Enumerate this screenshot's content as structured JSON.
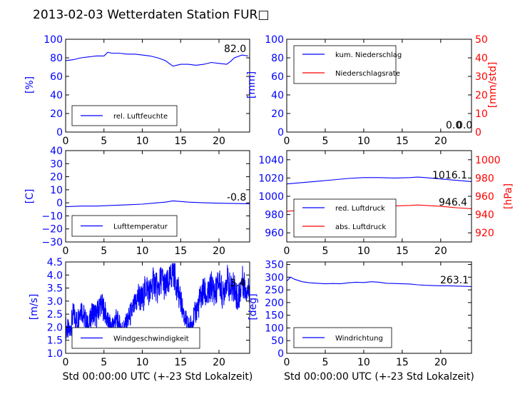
{
  "page": {
    "title": "2013-02-03 Wetterdaten Station FUR□"
  },
  "colors": {
    "left_axis": "#0000ff",
    "right_axis": "#ff0000",
    "frame": "#000000"
  },
  "chart_data": [
    {
      "id": "humidity",
      "type": "line",
      "ylabel": "[%]",
      "ylim": [
        0,
        100
      ],
      "yticks": [
        "0",
        "20",
        "40",
        "60",
        "80",
        "100"
      ],
      "xlim": [
        0,
        24
      ],
      "xticks": [
        "0",
        "5",
        "10",
        "15",
        "20"
      ],
      "xlabel": "",
      "legend": {
        "placement": "lower-left",
        "entries": [
          "rel. Luftfeuchte"
        ]
      },
      "annotation": "82.0",
      "series": [
        {
          "name": "rel. Luftfeuchte",
          "color": "#0000ff",
          "axis": "left",
          "x": [
            0,
            1,
            2,
            3,
            4,
            5,
            5.5,
            6,
            7,
            8,
            9,
            10,
            11,
            12,
            13,
            13.5,
            14,
            15,
            16,
            17,
            18,
            19,
            20,
            21,
            21.5,
            22,
            23,
            23.8
          ],
          "y": [
            77,
            78,
            80,
            81,
            82,
            82,
            86,
            85,
            85,
            84,
            84,
            83,
            82,
            80,
            77,
            74,
            71,
            73,
            73,
            72,
            73,
            75,
            74,
            73,
            76,
            80,
            83,
            82
          ]
        }
      ]
    },
    {
      "id": "precipitation",
      "type": "line",
      "ylabel": "[mm]",
      "ylim": [
        0,
        100
      ],
      "yticks": [
        "0",
        "20",
        "40",
        "60",
        "80",
        "100"
      ],
      "y2label": "[mm/std]",
      "y2lim": [
        0,
        50
      ],
      "y2ticks": [
        "0",
        "10",
        "20",
        "30",
        "40",
        "50"
      ],
      "xlim": [
        0,
        24
      ],
      "xticks": [
        "0",
        "5",
        "10",
        "15",
        "20"
      ],
      "xlabel": "",
      "legend": {
        "placement": "upper-left",
        "entries": [
          "kum. Niederschlag",
          "Niederschlagsrate"
        ]
      },
      "annotation": "0.0",
      "annotation2": "0.0",
      "series": [
        {
          "name": "kum. Niederschlag",
          "color": "#0000ff",
          "axis": "left",
          "x": [
            0,
            24
          ],
          "y": [
            0,
            0
          ]
        },
        {
          "name": "Niederschlagsrate",
          "color": "#ff0000",
          "axis": "right",
          "x": [
            0,
            24
          ],
          "y": [
            0,
            0
          ]
        }
      ]
    },
    {
      "id": "temperature",
      "type": "line",
      "ylabel": "[C]",
      "ylim": [
        -30,
        40
      ],
      "yticks": [
        "−30",
        "−20",
        "−10",
        "0",
        "10",
        "20",
        "30",
        "40"
      ],
      "xlim": [
        0,
        24
      ],
      "xticks": [
        "0",
        "5",
        "10",
        "15",
        "20"
      ],
      "xlabel": "",
      "legend": {
        "placement": "lower-left",
        "entries": [
          "Lufttemperatur"
        ]
      },
      "annotation": "-0.8",
      "series": [
        {
          "name": "Lufttemperatur",
          "color": "#0000ff",
          "axis": "left",
          "x": [
            0,
            2,
            4,
            6,
            8,
            10,
            12,
            13,
            14,
            15,
            16,
            18,
            20,
            22,
            24
          ],
          "y": [
            -3,
            -2.5,
            -2.5,
            -2,
            -1.5,
            -1,
            0,
            0.5,
            1.5,
            1,
            0.5,
            0,
            -0.3,
            -0.5,
            -0.8
          ]
        }
      ]
    },
    {
      "id": "pressure",
      "type": "line",
      "ylabel": "",
      "ylim": [
        950,
        1050
      ],
      "yticks": [
        "960",
        "980",
        "1000",
        "1020",
        "1040"
      ],
      "y2label": "[hPa]",
      "y2lim": [
        910,
        1010
      ],
      "y2ticks": [
        "920",
        "940",
        "960",
        "980",
        "1000"
      ],
      "xlim": [
        0,
        24
      ],
      "xticks": [
        "0",
        "5",
        "10",
        "15",
        "20"
      ],
      "xlabel": "",
      "legend": {
        "placement": "lower-left",
        "entries": [
          "red. Luftdruck",
          "abs. Luftdruck"
        ]
      },
      "annotation": "1016.1",
      "annotation2": "946.4",
      "series": [
        {
          "name": "red. Luftdruck",
          "color": "#0000ff",
          "axis": "left",
          "x": [
            0,
            2,
            4,
            6,
            8,
            10,
            12,
            14,
            16,
            17,
            18,
            20,
            22,
            24
          ],
          "y": [
            1013.5,
            1015,
            1016.5,
            1018,
            1019.5,
            1020.5,
            1020.5,
            1020,
            1020.5,
            1021,
            1020.5,
            1019,
            1017.5,
            1016.1
          ]
        },
        {
          "name": "abs. Luftdruck",
          "color": "#ff0000",
          "axis": "right",
          "x": [
            0,
            2,
            4,
            6,
            8,
            10,
            12,
            14,
            16,
            17,
            18,
            20,
            22,
            24
          ],
          "y": [
            943.5,
            945,
            946.5,
            947.5,
            949,
            950,
            950,
            949.5,
            950,
            950.5,
            950,
            949,
            947.5,
            946.4
          ]
        }
      ]
    },
    {
      "id": "windspeed",
      "type": "line",
      "ylabel": "[m/s]",
      "ylim": [
        1.0,
        4.5
      ],
      "yticks": [
        "1.0",
        "1.5",
        "2.0",
        "2.5",
        "3.0",
        "3.5",
        "4.0",
        "4.5"
      ],
      "xlim": [
        0,
        24
      ],
      "xticks": [
        "0",
        "5",
        "10",
        "15",
        "20"
      ],
      "xlabel": "Std 00:00:00 UTC (+-23 Std Lokalzeit)",
      "legend": {
        "placement": "lower-left",
        "entries": [
          "Windgeschwindigkeit"
        ]
      },
      "annotation": "3.4",
      "series": [
        {
          "name": "Windgeschwindigkeit",
          "color": "#0000ff",
          "axis": "left",
          "x": [
            0,
            0.5,
            1,
            1.5,
            2,
            2.5,
            3,
            3.5,
            4,
            4.5,
            5,
            5.5,
            6,
            6.5,
            7,
            7.5,
            8,
            8.5,
            9,
            9.5,
            10,
            10.5,
            11,
            11.5,
            12,
            12.5,
            13,
            13.5,
            14,
            14.5,
            15,
            15.5,
            16,
            16.5,
            17,
            17.5,
            18,
            18.5,
            19,
            19.5,
            20,
            20.5,
            21,
            21.5,
            22,
            22.5,
            23,
            23.5,
            24
          ],
          "y": [
            2.0,
            1.8,
            2.5,
            2.2,
            2.8,
            2.3,
            2.0,
            2.6,
            2.4,
            2.9,
            2.7,
            2.2,
            2.0,
            2.3,
            2.1,
            1.9,
            2.2,
            2.5,
            2.8,
            3.2,
            3.0,
            3.6,
            3.3,
            3.8,
            3.4,
            3.9,
            3.5,
            3.7,
            4.2,
            3.6,
            3.0,
            2.4,
            2.0,
            2.2,
            2.6,
            3.0,
            3.4,
            3.1,
            3.6,
            3.3,
            3.8,
            3.2,
            3.9,
            3.4,
            3.6,
            3.0,
            3.8,
            3.5,
            3.4
          ],
          "y_spread": [
            0.5,
            0.4,
            0.5,
            0.5,
            0.5,
            0.5,
            0.4,
            0.5,
            0.5,
            0.5,
            0.5,
            0.4,
            0.4,
            0.5,
            0.4,
            0.4,
            0.4,
            0.5,
            0.5,
            0.6,
            0.6,
            0.6,
            0.6,
            0.6,
            0.6,
            0.6,
            0.6,
            0.6,
            0.6,
            0.6,
            0.5,
            0.4,
            0.4,
            0.4,
            0.5,
            0.6,
            0.6,
            0.6,
            0.6,
            0.6,
            0.6,
            0.6,
            0.6,
            0.6,
            0.6,
            0.6,
            0.6,
            0.6,
            0.5
          ]
        }
      ]
    },
    {
      "id": "winddirection",
      "type": "line",
      "ylabel": "[deg]",
      "ylim": [
        0,
        360
      ],
      "yticks": [
        "0",
        "50",
        "100",
        "150",
        "200",
        "250",
        "300",
        "350"
      ],
      "xlim": [
        0,
        24
      ],
      "xticks": [
        "0",
        "5",
        "10",
        "15",
        "20"
      ],
      "xlabel": "Std 00:00:00 UTC (+-23 Std Lokalzeit)",
      "legend": {
        "placement": "lower-left",
        "entries": [
          "Windrichtung"
        ]
      },
      "annotation": "263.1",
      "series": [
        {
          "name": "Windrichtung",
          "color": "#0000ff",
          "axis": "left",
          "x": [
            0,
            0.5,
            1,
            2,
            3,
            4,
            5,
            6,
            7,
            8,
            9,
            10,
            11,
            12,
            13,
            14,
            15,
            16,
            17,
            18,
            19,
            20,
            21,
            22,
            23,
            24
          ],
          "y": [
            285,
            300,
            292,
            282,
            278,
            276,
            274,
            275,
            274,
            278,
            280,
            279,
            282,
            280,
            276,
            275,
            274,
            273,
            270,
            268,
            267,
            266,
            266,
            265,
            264,
            263
          ]
        }
      ]
    }
  ]
}
